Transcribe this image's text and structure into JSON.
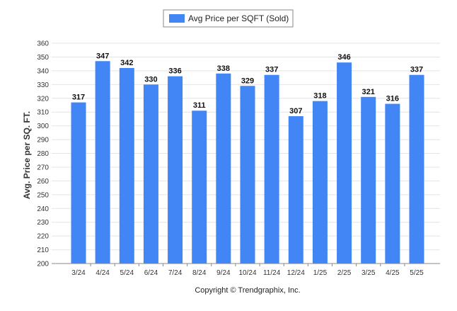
{
  "chart_data": {
    "type": "bar",
    "categories": [
      "3/24",
      "4/24",
      "5/24",
      "6/24",
      "7/24",
      "8/24",
      "9/24",
      "10/24",
      "11/24",
      "12/24",
      "1/25",
      "2/25",
      "3/25",
      "4/25",
      "5/25"
    ],
    "series": [
      {
        "name": "Avg Price per SQFT (Sold)",
        "values": [
          317,
          347,
          342,
          330,
          336,
          311,
          338,
          329,
          337,
          307,
          318,
          346,
          321,
          316,
          337
        ],
        "color": "#4285f4"
      }
    ],
    "ylabel": "Avg. Price per SQ. FT.",
    "xlabel": "",
    "ylim": [
      200,
      360
    ],
    "yticks": [
      200,
      210,
      220,
      230,
      240,
      250,
      260,
      270,
      280,
      290,
      300,
      310,
      320,
      330,
      340,
      350,
      360
    ],
    "grid": true,
    "legend_position": "top-center",
    "data_labels": true
  },
  "footer": {
    "copyright": "Copyright © Trendgraphix, Inc."
  },
  "colors": {
    "bar": "#4285f4",
    "grid": "#e4e4e4",
    "axis": "#888888"
  }
}
